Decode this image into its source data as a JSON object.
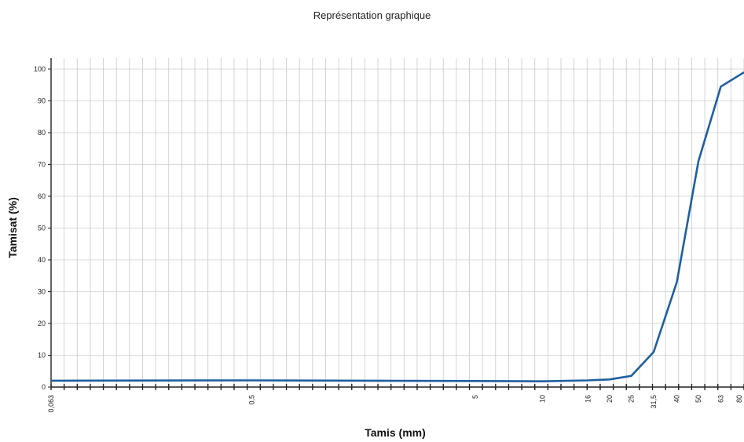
{
  "chart_data": {
    "type": "line",
    "title": "Représentation graphique",
    "xlabel": "Tamis (mm)",
    "ylabel": "Tamisat (%)",
    "x_scale": "log",
    "ylim": [
      0,
      100
    ],
    "y_ticks": [
      0,
      10,
      20,
      30,
      40,
      50,
      60,
      70,
      80,
      90,
      100
    ],
    "x_tick_labels": [
      "0,063",
      "0,5",
      "5",
      "10",
      "16",
      "20",
      "25",
      "31,5",
      "40",
      "50",
      "63",
      "80"
    ],
    "grid": true,
    "series": [
      {
        "color": "#1f5f9f",
        "x": [
          0.063,
          0.5,
          5,
          10,
          16,
          20,
          25,
          31.5,
          40,
          50,
          63,
          80
        ],
        "y": [
          2,
          2.1,
          1.9,
          1.8,
          2.1,
          2.4,
          3.5,
          11,
          33,
          71,
          94.5,
          99
        ]
      }
    ]
  }
}
